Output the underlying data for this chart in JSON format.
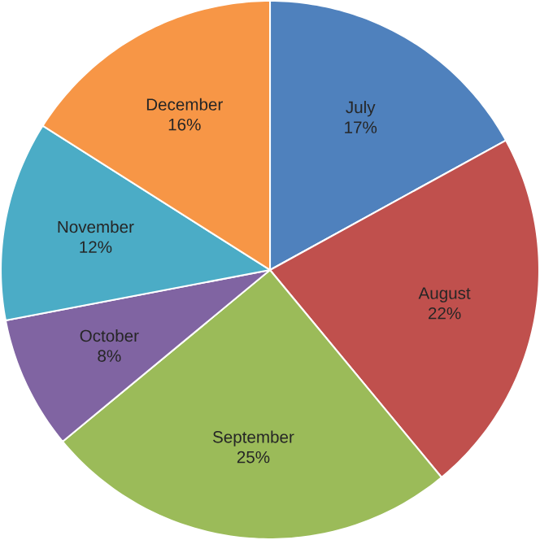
{
  "chart_data": {
    "type": "pie",
    "categories": [
      "July",
      "August",
      "September",
      "October",
      "November",
      "December"
    ],
    "values": [
      17,
      22,
      25,
      8,
      12,
      16
    ],
    "value_labels": [
      "17%",
      "22%",
      "25%",
      "8%",
      "12%",
      "16%"
    ],
    "colors": [
      "#4f81bd",
      "#c0504d",
      "#9bbb59",
      "#8064a2",
      "#4bacc6",
      "#f79646"
    ]
  }
}
